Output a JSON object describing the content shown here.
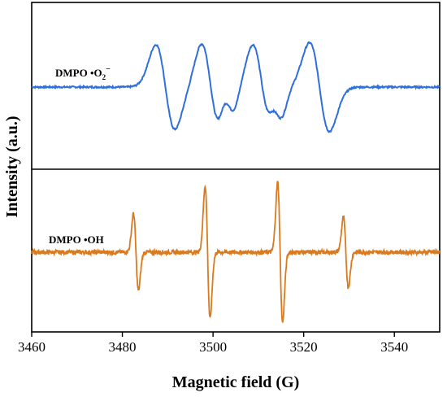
{
  "chart_data": {
    "type": "line",
    "xlabel": "Magnetic field (G)",
    "ylabel": "Intensity (a.u.)",
    "xlim": [
      3460,
      3550
    ],
    "xticks": [
      "3460",
      "3480",
      "3500",
      "3520",
      "3540"
    ],
    "grid": false,
    "legend": "none",
    "panels": [
      {
        "label_main": "DMPO •O",
        "label_sub": "2",
        "label_sup": "−",
        "color": "#2f6fdc",
        "baseline_x": [
          3460,
          3482,
          3550
        ],
        "peaks": [
          {
            "center": 3489.5,
            "amp": 1.0,
            "width": 2.1
          },
          {
            "center": 3499.5,
            "amp": 1.02,
            "width": 2.0
          },
          {
            "center": 3503.5,
            "amp": 0.42,
            "width": 1.3
          },
          {
            "center": 3510.8,
            "amp": 1.0,
            "width": 2.0
          },
          {
            "center": 3514.2,
            "amp": 0.42,
            "width": 1.3
          },
          {
            "center": 3523.5,
            "amp": 1.05,
            "width": 2.2
          }
        ]
      },
      {
        "label_main": "DMPO •OH",
        "color": "#d97a1f",
        "peaks": [
          {
            "center": 3483.0,
            "amp": 0.55,
            "width": 0.55
          },
          {
            "center": 3498.8,
            "amp": 0.95,
            "width": 0.55
          },
          {
            "center": 3514.8,
            "amp": 1.0,
            "width": 0.55
          },
          {
            "center": 3529.3,
            "amp": 0.5,
            "width": 0.55
          }
        ]
      }
    ]
  }
}
